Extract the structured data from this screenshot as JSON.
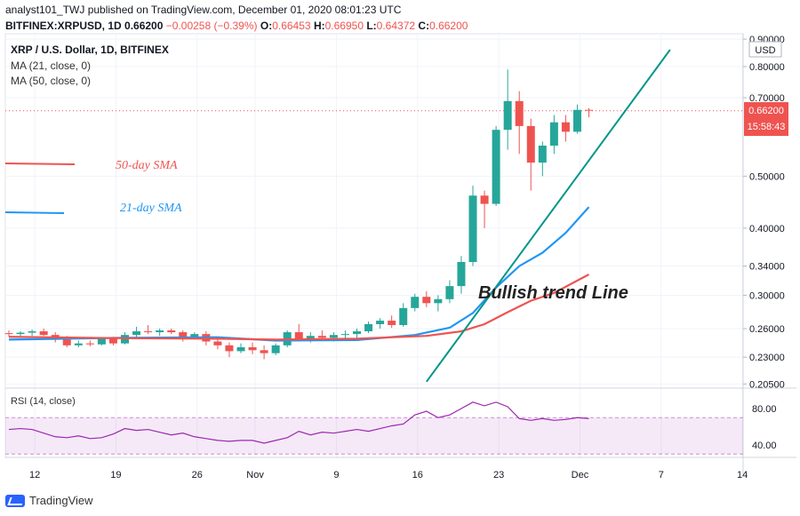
{
  "header": {
    "line1": "analyst101_TWJ published on TradingView.com, December 01, 2020 08:01:23 UTC",
    "symbol": "BITFINEX:XRPUSD, 1D",
    "last": "0.66200",
    "change": "−0.00258 (−0.39%)",
    "o_label": "O:",
    "o_val": "0.66453",
    "h_label": "H:",
    "h_val": "0.66950",
    "l_label": "L:",
    "l_val": "0.64372",
    "c_label": "C:",
    "c_val": "0.66200"
  },
  "legend": {
    "title": "XRP / U.S. Dollar, 1D, BITFINEX",
    "ma21": "MA (21, close, 0)",
    "ma50": "MA (50, close, 0)"
  },
  "branding": {
    "name": "TradingView"
  },
  "colors": {
    "up": "#26a69a",
    "down": "#ef5350",
    "ma21": "#2196f3",
    "ma50": "#ef5350",
    "rsi": "#9c27b0",
    "trend": "#009688"
  },
  "chart_data": {
    "type": "candlestick",
    "y_scale": "log",
    "currency": "USD",
    "price_ticks": [
      "0.90000",
      "0.80000",
      "0.70000",
      "0.50000",
      "0.40000",
      "0.34000",
      "0.30000",
      "0.26000",
      "0.23000",
      "0.20500"
    ],
    "last_price_label": "0.66200",
    "countdown_label": "15:58:43",
    "x_ticks": [
      "12",
      "19",
      "26",
      "Nov",
      "9",
      "16",
      "23",
      "Dec",
      "7",
      "14"
    ],
    "candles": [
      {
        "o": 0.255,
        "h": 0.258,
        "l": 0.251,
        "c": 0.254
      },
      {
        "o": 0.254,
        "h": 0.257,
        "l": 0.25,
        "c": 0.2555
      },
      {
        "o": 0.2555,
        "h": 0.259,
        "l": 0.252,
        "c": 0.257
      },
      {
        "o": 0.257,
        "h": 0.26,
        "l": 0.252,
        "c": 0.253
      },
      {
        "o": 0.253,
        "h": 0.256,
        "l": 0.245,
        "c": 0.248
      },
      {
        "o": 0.248,
        "h": 0.252,
        "l": 0.24,
        "c": 0.242
      },
      {
        "o": 0.242,
        "h": 0.247,
        "l": 0.24,
        "c": 0.244
      },
      {
        "o": 0.244,
        "h": 0.247,
        "l": 0.241,
        "c": 0.243
      },
      {
        "o": 0.243,
        "h": 0.25,
        "l": 0.242,
        "c": 0.249
      },
      {
        "o": 0.249,
        "h": 0.251,
        "l": 0.242,
        "c": 0.244
      },
      {
        "o": 0.244,
        "h": 0.256,
        "l": 0.243,
        "c": 0.253
      },
      {
        "o": 0.253,
        "h": 0.262,
        "l": 0.25,
        "c": 0.257
      },
      {
        "o": 0.257,
        "h": 0.264,
        "l": 0.254,
        "c": 0.256
      },
      {
        "o": 0.256,
        "h": 0.26,
        "l": 0.252,
        "c": 0.258
      },
      {
        "o": 0.258,
        "h": 0.26,
        "l": 0.254,
        "c": 0.256
      },
      {
        "o": 0.256,
        "h": 0.258,
        "l": 0.246,
        "c": 0.25
      },
      {
        "o": 0.25,
        "h": 0.256,
        "l": 0.248,
        "c": 0.254
      },
      {
        "o": 0.254,
        "h": 0.257,
        "l": 0.242,
        "c": 0.246
      },
      {
        "o": 0.246,
        "h": 0.25,
        "l": 0.238,
        "c": 0.242
      },
      {
        "o": 0.242,
        "h": 0.245,
        "l": 0.23,
        "c": 0.236
      },
      {
        "o": 0.236,
        "h": 0.244,
        "l": 0.234,
        "c": 0.24
      },
      {
        "o": 0.24,
        "h": 0.245,
        "l": 0.233,
        "c": 0.237
      },
      {
        "o": 0.237,
        "h": 0.242,
        "l": 0.228,
        "c": 0.234
      },
      {
        "o": 0.234,
        "h": 0.244,
        "l": 0.232,
        "c": 0.242
      },
      {
        "o": 0.242,
        "h": 0.258,
        "l": 0.24,
        "c": 0.256
      },
      {
        "o": 0.256,
        "h": 0.265,
        "l": 0.246,
        "c": 0.248
      },
      {
        "o": 0.248,
        "h": 0.256,
        "l": 0.245,
        "c": 0.252
      },
      {
        "o": 0.252,
        "h": 0.258,
        "l": 0.248,
        "c": 0.25
      },
      {
        "o": 0.25,
        "h": 0.256,
        "l": 0.246,
        "c": 0.253
      },
      {
        "o": 0.253,
        "h": 0.258,
        "l": 0.249,
        "c": 0.254
      },
      {
        "o": 0.254,
        "h": 0.26,
        "l": 0.25,
        "c": 0.257
      },
      {
        "o": 0.257,
        "h": 0.268,
        "l": 0.255,
        "c": 0.265
      },
      {
        "o": 0.265,
        "h": 0.272,
        "l": 0.26,
        "c": 0.269
      },
      {
        "o": 0.269,
        "h": 0.275,
        "l": 0.261,
        "c": 0.264
      },
      {
        "o": 0.264,
        "h": 0.29,
        "l": 0.262,
        "c": 0.284
      },
      {
        "o": 0.284,
        "h": 0.302,
        "l": 0.28,
        "c": 0.298
      },
      {
        "o": 0.298,
        "h": 0.305,
        "l": 0.285,
        "c": 0.29
      },
      {
        "o": 0.29,
        "h": 0.3,
        "l": 0.28,
        "c": 0.295
      },
      {
        "o": 0.295,
        "h": 0.32,
        "l": 0.29,
        "c": 0.312
      },
      {
        "o": 0.312,
        "h": 0.355,
        "l": 0.302,
        "c": 0.346
      },
      {
        "o": 0.346,
        "h": 0.48,
        "l": 0.34,
        "c": 0.46
      },
      {
        "o": 0.46,
        "h": 0.47,
        "l": 0.4,
        "c": 0.444
      },
      {
        "o": 0.444,
        "h": 0.62,
        "l": 0.44,
        "c": 0.61
      },
      {
        "o": 0.61,
        "h": 0.79,
        "l": 0.56,
        "c": 0.69
      },
      {
        "o": 0.69,
        "h": 0.72,
        "l": 0.55,
        "c": 0.62
      },
      {
        "o": 0.62,
        "h": 0.64,
        "l": 0.47,
        "c": 0.53
      },
      {
        "o": 0.53,
        "h": 0.58,
        "l": 0.5,
        "c": 0.57
      },
      {
        "o": 0.57,
        "h": 0.65,
        "l": 0.55,
        "c": 0.63
      },
      {
        "o": 0.63,
        "h": 0.65,
        "l": 0.58,
        "c": 0.605
      },
      {
        "o": 0.605,
        "h": 0.68,
        "l": 0.6,
        "c": 0.6645
      },
      {
        "o": 0.6645,
        "h": 0.6695,
        "l": 0.6437,
        "c": 0.662
      }
    ],
    "ma21": [
      {
        "i": 0,
        "v": 0.248
      },
      {
        "i": 10,
        "v": 0.25
      },
      {
        "i": 18,
        "v": 0.2505
      },
      {
        "i": 23,
        "v": 0.247
      },
      {
        "i": 30,
        "v": 0.2475
      },
      {
        "i": 35,
        "v": 0.253
      },
      {
        "i": 38,
        "v": 0.261
      },
      {
        "i": 40,
        "v": 0.278
      },
      {
        "i": 42,
        "v": 0.31
      },
      {
        "i": 44,
        "v": 0.34
      },
      {
        "i": 46,
        "v": 0.36
      },
      {
        "i": 48,
        "v": 0.392
      },
      {
        "i": 50,
        "v": 0.438
      }
    ],
    "ma50": [
      {
        "i": 0,
        "v": 0.251
      },
      {
        "i": 10,
        "v": 0.2495
      },
      {
        "i": 18,
        "v": 0.249
      },
      {
        "i": 23,
        "v": 0.248
      },
      {
        "i": 30,
        "v": 0.249
      },
      {
        "i": 36,
        "v": 0.252
      },
      {
        "i": 39,
        "v": 0.257
      },
      {
        "i": 41,
        "v": 0.265
      },
      {
        "i": 43,
        "v": 0.279
      },
      {
        "i": 45,
        "v": 0.293
      },
      {
        "i": 47,
        "v": 0.303
      },
      {
        "i": 50,
        "v": 0.328
      }
    ],
    "ma50_annotation": "50-day SMA",
    "ma21_annotation": "21-day SMA",
    "trend_label": "Bullish trend Line",
    "trend_line": [
      {
        "i": 36,
        "v": 0.207
      },
      {
        "i": 57,
        "v": 0.86
      }
    ],
    "rsi": {
      "title": "RSI (14, close)",
      "ticks": [
        "80.00",
        "40.00"
      ],
      "bands": [
        70,
        30
      ],
      "values": [
        57,
        58,
        57,
        53,
        49,
        48,
        50,
        47,
        48,
        52,
        58,
        56,
        57,
        54,
        51,
        53,
        49,
        47,
        45,
        44,
        45,
        45,
        42,
        45,
        48,
        55,
        51,
        54,
        53,
        55,
        57,
        55,
        58,
        61,
        63,
        73,
        77,
        70,
        73,
        80,
        87,
        83,
        87,
        82,
        69,
        67,
        69,
        67,
        68,
        70,
        69
      ]
    }
  }
}
